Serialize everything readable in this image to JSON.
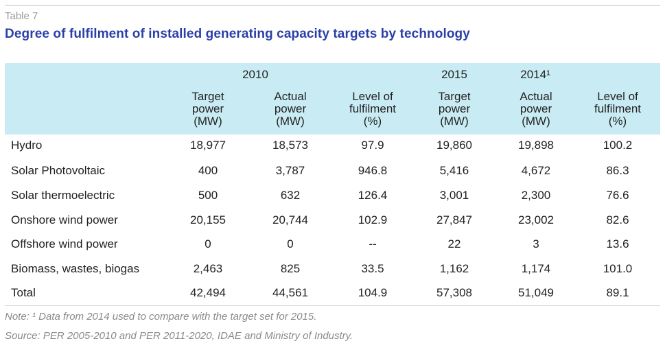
{
  "table_number": "Table 7",
  "title": "Degree of fulfilment of installed generating capacity targets by technology",
  "group_headers": {
    "y2010": "2010",
    "y2015": "2015",
    "y2014": "2014¹"
  },
  "column_headers": [
    [
      "Target",
      "power",
      "(MW)"
    ],
    [
      "Actual",
      "power",
      "(MW)"
    ],
    [
      "Level of",
      "fulfilment",
      "(%)"
    ],
    [
      "Target",
      "power",
      "(MW)"
    ],
    [
      "Actual",
      "power",
      "(MW)"
    ],
    [
      "Level of",
      "fulfilment",
      "(%)"
    ]
  ],
  "rows": [
    {
      "label": "Hydro",
      "values": [
        "18,977",
        "18,573",
        "97.9",
        "19,860",
        "19,898",
        "100.2"
      ]
    },
    {
      "label": "Solar Photovoltaic",
      "values": [
        "400",
        "3,787",
        "946.8",
        "5,416",
        "4,672",
        "86.3"
      ]
    },
    {
      "label": "Solar thermoelectric",
      "values": [
        "500",
        "632",
        "126.4",
        "3,001",
        "2,300",
        "76.6"
      ]
    },
    {
      "label": "Onshore wind power",
      "values": [
        "20,155",
        "20,744",
        "102.9",
        "27,847",
        "23,002",
        "82.6"
      ]
    },
    {
      "label": "Offshore wind power",
      "values": [
        "0",
        "0",
        "--",
        "22",
        "3",
        "13.6"
      ]
    },
    {
      "label": "Biomass, wastes, biogas",
      "values": [
        "2,463",
        "825",
        "33.5",
        "1,162",
        "1,174",
        "101.0"
      ]
    },
    {
      "label": "Total",
      "values": [
        "42,494",
        "44,561",
        "104.9",
        "57,308",
        "51,049",
        "89.1"
      ]
    }
  ],
  "note": "Note: ¹ Data from 2014 used to compare with the target set for 2015.",
  "source": "Source: PER 2005-2010 and PER 2011-2020, IDAE and Ministry of Industry.",
  "colors": {
    "header_band": "#c9ecf4",
    "title": "#2a3fa8",
    "note": "#8a8a8a"
  }
}
